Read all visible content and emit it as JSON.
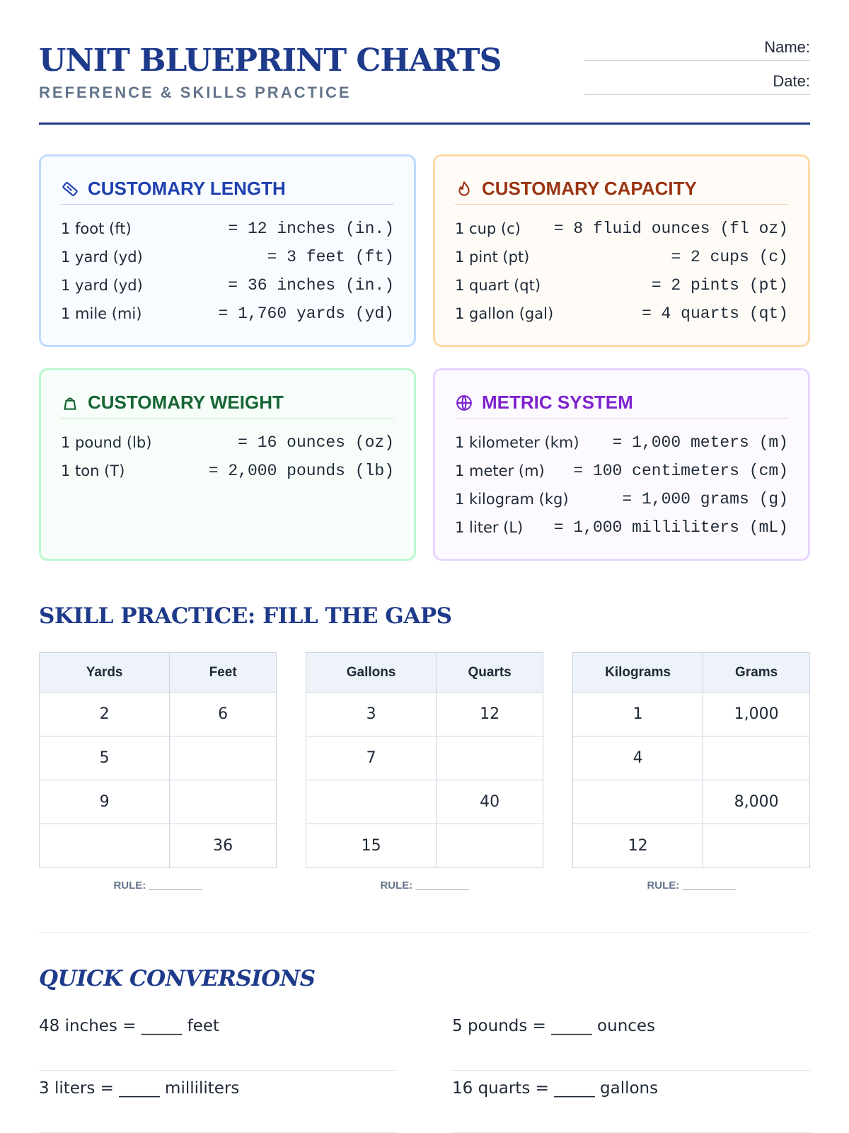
{
  "header": {
    "title": "UNIT BLUEPRINT CHARTS",
    "subtitle": "REFERENCE & SKILLS PRACTICE",
    "fields": [
      "Name:",
      "Date:"
    ]
  },
  "cards": [
    {
      "title": "CUSTOMARY LENGTH",
      "rows": [
        [
          "1 foot (ft)",
          "= 12 inches (in.)"
        ],
        [
          "1 yard (yd)",
          "= 3 feet (ft)"
        ],
        [
          "1 yard (yd)",
          "= 36 inches (in.)"
        ],
        [
          "1 mile (mi)",
          "= 1,760 yards (yd)"
        ]
      ]
    },
    {
      "title": "CUSTOMARY CAPACITY",
      "rows": [
        [
          "1 cup (c)",
          "= 8 fluid ounces (fl oz)"
        ],
        [
          "1 pint (pt)",
          "= 2 cups (c)"
        ],
        [
          "1 quart (qt)",
          "= 2 pints (pt)"
        ],
        [
          "1 gallon (gal)",
          "= 4 quarts (qt)"
        ]
      ]
    },
    {
      "title": "CUSTOMARY WEIGHT",
      "rows": [
        [
          "1 pound (lb)",
          "= 16 ounces (oz)"
        ],
        [
          "1 ton (T)",
          "= 2,000 pounds (lb)"
        ]
      ]
    },
    {
      "title": "METRIC SYSTEM",
      "rows": [
        [
          "1 kilometer (km)",
          "= 1,000 meters (m)"
        ],
        [
          "1 meter (m)",
          "= 100 centimeters (cm)"
        ],
        [
          "1 kilogram (kg)",
          "= 1,000 grams (g)"
        ],
        [
          "1 liter (L)",
          "= 1,000 milliliters (mL)"
        ]
      ]
    }
  ],
  "practice": {
    "title": "SKILL PRACTICE: FILL THE GAPS",
    "tables": [
      {
        "headers": [
          "Yards",
          "Feet"
        ],
        "rows": [
          [
            "2",
            "6"
          ],
          [
            "5",
            null
          ],
          [
            "9",
            null
          ],
          [
            null,
            "36"
          ]
        ],
        "rule": "RULE: _________"
      },
      {
        "headers": [
          "Gallons",
          "Quarts"
        ],
        "rows": [
          [
            "3",
            "12"
          ],
          [
            "7",
            null
          ],
          [
            null,
            "40"
          ],
          [
            "15",
            null
          ]
        ],
        "rule": "RULE: _________"
      },
      {
        "headers": [
          "Kilograms",
          "Grams"
        ],
        "rows": [
          [
            "1",
            "1,000"
          ],
          [
            "4",
            null
          ],
          [
            null,
            "8,000"
          ],
          [
            "12",
            null
          ]
        ],
        "rule": "RULE: _________"
      }
    ]
  },
  "quick": {
    "title": "QUICK CONVERSIONS",
    "items": [
      "48 inches = _____ feet",
      "5 pounds = _____ ounces",
      "3 liters = _____ milliliters",
      "16 quarts = _____ gallons"
    ]
  }
}
